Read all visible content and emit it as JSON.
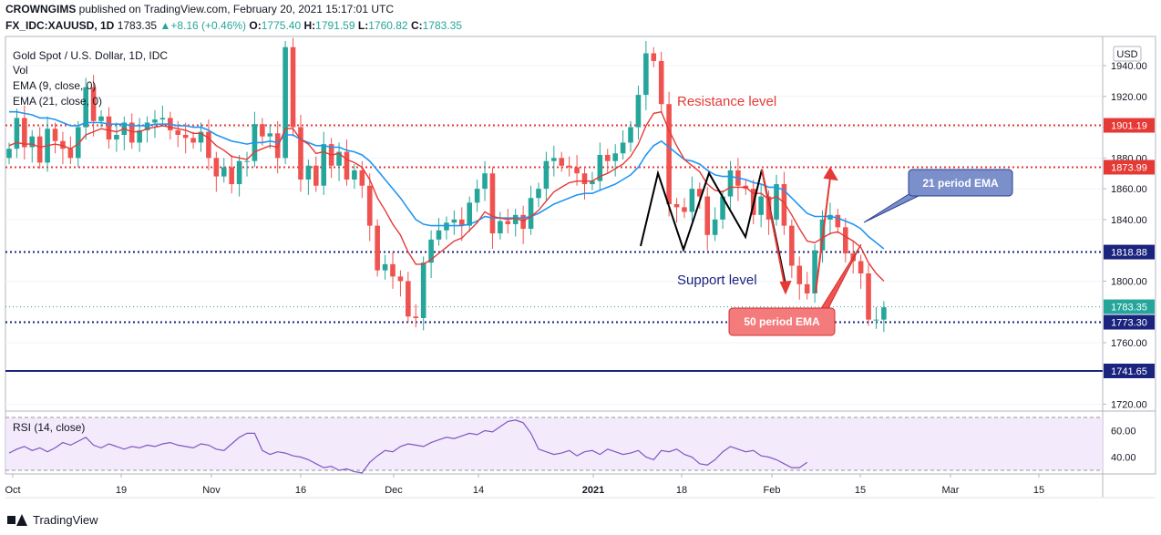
{
  "header": {
    "publisher": "CROWNGIMS",
    "published_text": "published on TradingView.com, February 20, 2021 15:17:01 UTC",
    "symbol": "FX_IDC:XAUUSD, 1D",
    "last": "1783.35",
    "change": "+8.16 (+0.46%)",
    "o_label": "O:",
    "o": "1775.40",
    "h_label": "H:",
    "h": "1791.59",
    "l_label": "L:",
    "l": "1760.82",
    "c_label": "C:",
    "c": "1783.35"
  },
  "legend": {
    "title": "Gold Spot / U.S. Dollar, 1D, IDC",
    "vol": "Vol",
    "ema9": "EMA (9, close, 0)",
    "ema21": "EMA (21, close, 0)"
  },
  "annotations": {
    "resistance": "Resistance level",
    "support": "Support level",
    "ema21_callout": "21 period EMA",
    "ema50_callout": "50 period EMA"
  },
  "rsi": {
    "label": "RSI (14, close)",
    "ticks": [
      "60.00",
      "40.00"
    ],
    "upper": 70,
    "lower": 30,
    "values": [
      43,
      46,
      48,
      45,
      47,
      44,
      47,
      51,
      49,
      52,
      55,
      49,
      47,
      50,
      48,
      46,
      48,
      47,
      49,
      48,
      50,
      51,
      49,
      48,
      47,
      50,
      49,
      46,
      45,
      50,
      55,
      58,
      58,
      45,
      42,
      44,
      43,
      41,
      40,
      38,
      35,
      32,
      33,
      30,
      31,
      29,
      28,
      36,
      41,
      45,
      44,
      48,
      50,
      49,
      48,
      51,
      53,
      55,
      54,
      56,
      58,
      57,
      60,
      59,
      63,
      67,
      68,
      66,
      58,
      46,
      44,
      42,
      43,
      45,
      41,
      44,
      45,
      42,
      46,
      44,
      42,
      43,
      45,
      40,
      38,
      45,
      44,
      46,
      42,
      40,
      35,
      34,
      38,
      44,
      48,
      46,
      44,
      45,
      41,
      40,
      38,
      35,
      32,
      32,
      36
    ]
  },
  "price_axis": {
    "currency": "USD",
    "ticks": [
      "1940.00",
      "1920.00",
      "1900.00",
      "1880.00",
      "1860.00",
      "1840.00",
      "1800.00",
      "1760.00",
      "1720.00"
    ],
    "labels": [
      {
        "text": "1901.19",
        "value": 1901.19,
        "color": "#e53935"
      },
      {
        "text": "1873.99",
        "value": 1873.99,
        "color": "#e53935"
      },
      {
        "text": "1818.88",
        "value": 1818.88,
        "color": "#1a237e"
      },
      {
        "text": "1783.35",
        "value": 1783.35,
        "color": "#26a69a"
      },
      {
        "text": "1773.30",
        "value": 1773.3,
        "color": "#1a237e"
      },
      {
        "text": "1741.65",
        "value": 1741.65,
        "color": "#1a237e"
      }
    ]
  },
  "time_axis": [
    "Oct",
    "19",
    "Nov",
    "16",
    "Dec",
    "14",
    "2021",
    "18",
    "Feb",
    "15",
    "Mar",
    "15"
  ],
  "footer": {
    "brand": "TradingView"
  },
  "colors": {
    "up": "#26a69a",
    "down": "#ef5350",
    "ema9": "#e53935",
    "ema21": "#2196f3",
    "rsi": "#7e57c2"
  },
  "chart_data": {
    "type": "candlestick",
    "title": "Gold Spot / U.S. Dollar, 1D, IDC",
    "ylim": [
      1712,
      1960
    ],
    "levels": [
      {
        "value": 1901.19,
        "style": "dotted",
        "color": "#e53935"
      },
      {
        "value": 1873.99,
        "style": "dotted",
        "color": "#e53935"
      },
      {
        "value": 1818.88,
        "style": "dotted",
        "color": "#1a237e"
      },
      {
        "value": 1773.3,
        "style": "dotted",
        "color": "#1a237e"
      },
      {
        "value": 1741.65,
        "style": "solid",
        "color": "#1a237e"
      }
    ],
    "close": [
      1886,
      1906,
      1887,
      1894,
      1877,
      1899,
      1891,
      1886,
      1880,
      1900,
      1926,
      1904,
      1907,
      1892,
      1895,
      1903,
      1890,
      1898,
      1903,
      1905,
      1906,
      1898,
      1895,
      1893,
      1890,
      1897,
      1880,
      1868,
      1874,
      1863,
      1878,
      1878,
      1902,
      1894,
      1896,
      1880,
      1952,
      1900,
      1866,
      1875,
      1862,
      1889,
      1875,
      1884,
      1866,
      1872,
      1862,
      1836,
      1807,
      1811,
      1803,
      1800,
      1777,
      1776,
      1812,
      1827,
      1833,
      1838,
      1840,
      1836,
      1851,
      1860,
      1870,
      1831,
      1839,
      1837,
      1843,
      1834,
      1854,
      1860,
      1878,
      1880,
      1875,
      1874,
      1870,
      1863,
      1865,
      1882,
      1878,
      1883,
      1890,
      1900,
      1921,
      1948,
      1943,
      1915,
      1850,
      1848,
      1845,
      1860,
      1855,
      1830,
      1840,
      1855,
      1872,
      1862,
      1860,
      1843,
      1855,
      1840,
      1863,
      1836,
      1810,
      1798,
      1792,
      1820,
      1840,
      1843,
      1835,
      1818,
      1813,
      1805,
      1775,
      1775,
      1783
    ],
    "ema9": [
      1888,
      1890,
      1889,
      1889,
      1887,
      1888,
      1889,
      1888,
      1886,
      1889,
      1895,
      1897,
      1899,
      1898,
      1897,
      1899,
      1897,
      1897,
      1899,
      1900,
      1901,
      1900,
      1899,
      1898,
      1896,
      1896,
      1893,
      1888,
      1885,
      1881,
      1880,
      1879,
      1884,
      1886,
      1888,
      1887,
      1899,
      1899,
      1892,
      1889,
      1883,
      1884,
      1882,
      1883,
      1879,
      1877,
      1874,
      1866,
      1854,
      1846,
      1837,
      1830,
      1819,
      1811,
      1811,
      1814,
      1818,
      1822,
      1826,
      1828,
      1833,
      1838,
      1845,
      1842,
      1841,
      1840,
      1841,
      1839,
      1842,
      1846,
      1852,
      1858,
      1861,
      1864,
      1865,
      1865,
      1865,
      1868,
      1870,
      1873,
      1876,
      1881,
      1889,
      1901,
      1909,
      1910,
      1898,
      1888,
      1879,
      1875,
      1871,
      1863,
      1859,
      1858,
      1861,
      1861,
      1861,
      1857,
      1857,
      1853,
      1855,
      1851,
      1843,
      1834,
      1826,
      1825,
      1828,
      1831,
      1832,
      1829,
      1826,
      1822,
      1812,
      1805,
      1800
    ],
    "ema21": [
      1910,
      1910,
      1909,
      1908,
      1906,
      1906,
      1905,
      1903,
      1901,
      1901,
      1903,
      1903,
      1903,
      1902,
      1902,
      1902,
      1901,
      1901,
      1901,
      1902,
      1902,
      1902,
      1901,
      1901,
      1900,
      1900,
      1898,
      1895,
      1893,
      1891,
      1890,
      1889,
      1890,
      1890,
      1891,
      1890,
      1895,
      1895,
      1892,
      1890,
      1888,
      1888,
      1887,
      1887,
      1885,
      1884,
      1882,
      1878,
      1872,
      1866,
      1860,
      1854,
      1847,
      1840,
      1837,
      1836,
      1836,
      1836,
      1836,
      1836,
      1837,
      1839,
      1842,
      1841,
      1841,
      1841,
      1841,
      1841,
      1842,
      1844,
      1847,
      1850,
      1852,
      1854,
      1856,
      1857,
      1857,
      1859,
      1861,
      1863,
      1866,
      1869,
      1874,
      1882,
      1888,
      1891,
      1887,
      1883,
      1879,
      1878,
      1876,
      1872,
      1869,
      1868,
      1868,
      1867,
      1866,
      1864,
      1863,
      1861,
      1861,
      1859,
      1854,
      1849,
      1844,
      1842,
      1842,
      1842,
      1841,
      1839,
      1837,
      1834,
      1829,
      1825,
      1821
    ]
  }
}
